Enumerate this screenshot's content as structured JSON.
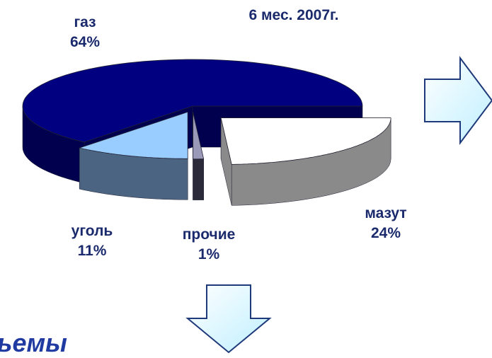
{
  "chart_data": {
    "type": "pie3d",
    "title": "6 мес. 2007г.",
    "categories": [
      "мазут",
      "прочие",
      "уголь",
      "газ"
    ],
    "values": [
      24,
      1,
      11,
      64
    ],
    "value_labels": [
      "24%",
      "1%",
      "11%",
      "64%"
    ],
    "colors": [
      "#ffffff",
      "#9a9ab8",
      "#99ccff",
      "#000080"
    ],
    "side_colors": [
      "#8a8a8a",
      "#2a2a3a",
      "#4a6482",
      "#00004e"
    ]
  },
  "caption": "ъемы"
}
